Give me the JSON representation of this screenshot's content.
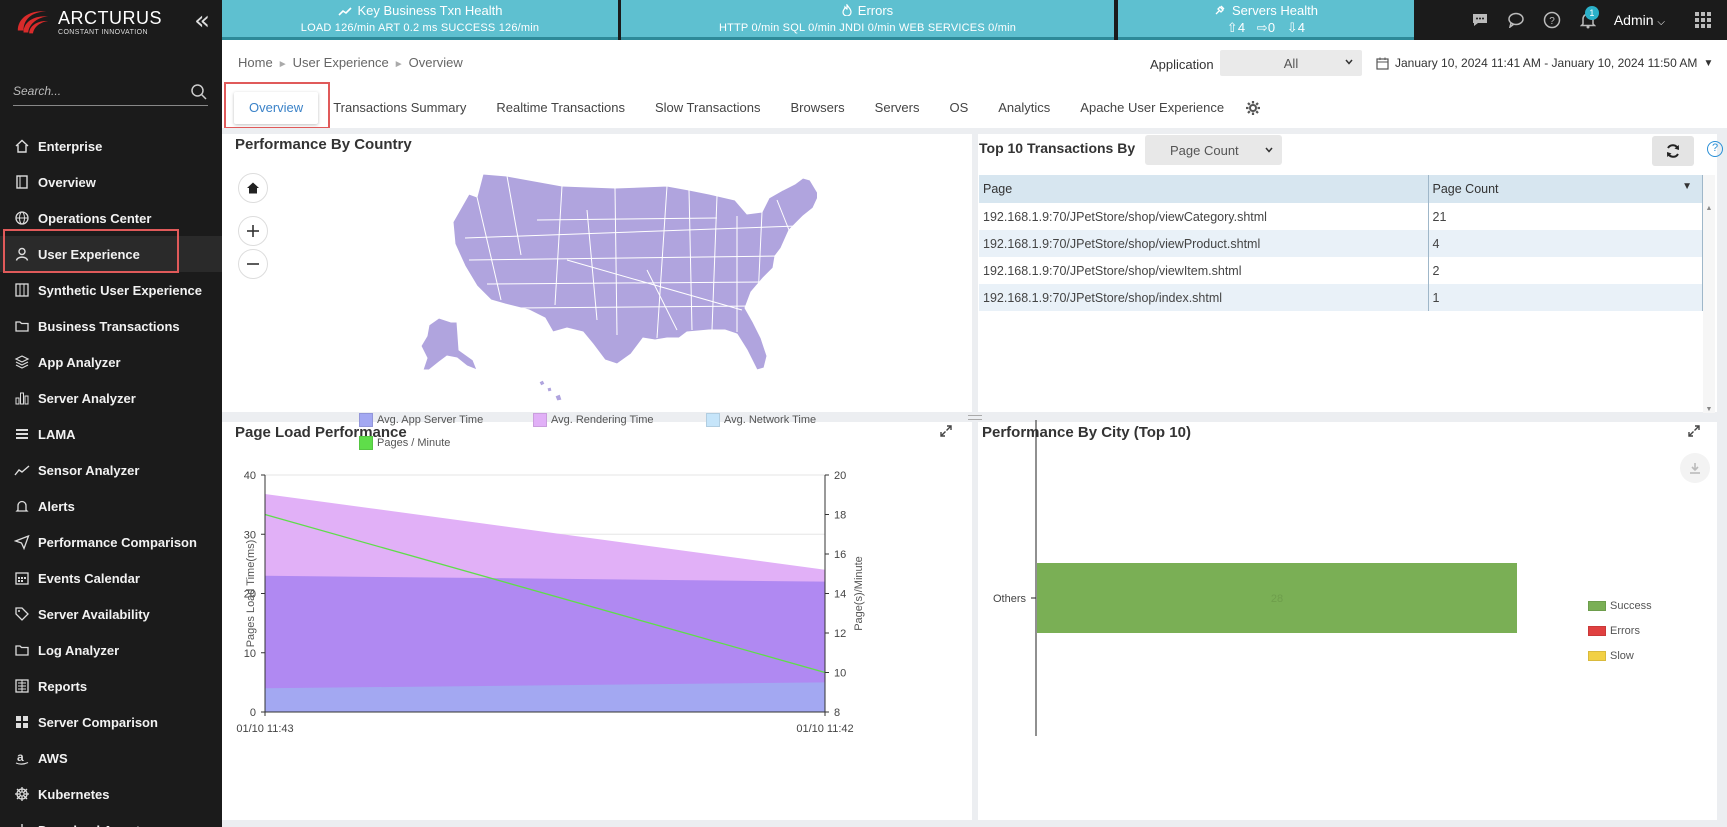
{
  "brand": {
    "name": "ARCTURUS",
    "tagline": "CONSTANT INNOVATION"
  },
  "search": {
    "placeholder": "Search..."
  },
  "nav": [
    {
      "label": "Enterprise",
      "icon": "home-icon"
    },
    {
      "label": "Overview",
      "icon": "book-icon"
    },
    {
      "label": "Operations Center",
      "icon": "globe-icon"
    },
    {
      "label": "User Experience",
      "icon": "user-icon",
      "active": true
    },
    {
      "label": "Synthetic User Experience",
      "icon": "columns-icon"
    },
    {
      "label": "Business Transactions",
      "icon": "folder-icon"
    },
    {
      "label": "App Analyzer",
      "icon": "layers-icon"
    },
    {
      "label": "Server Analyzer",
      "icon": "bar-chart-icon"
    },
    {
      "label": "LAMA",
      "icon": "list-icon"
    },
    {
      "label": "Sensor Analyzer",
      "icon": "trend-icon"
    },
    {
      "label": "Alerts",
      "icon": "bell-icon"
    },
    {
      "label": "Performance Comparison",
      "icon": "send-icon"
    },
    {
      "label": "Events Calendar",
      "icon": "calendar-icon"
    },
    {
      "label": "Server Availability",
      "icon": "tag-icon"
    },
    {
      "label": "Log Analyzer",
      "icon": "folder-icon"
    },
    {
      "label": "Reports",
      "icon": "report-icon"
    },
    {
      "label": "Server Comparison",
      "icon": "grid-icon"
    },
    {
      "label": "AWS",
      "icon": "amazon-icon"
    },
    {
      "label": "Kubernetes",
      "icon": "helm-icon"
    },
    {
      "label": "Download Agents",
      "icon": "download-icon"
    }
  ],
  "header": {
    "kbt": {
      "title": "Key Business Txn Health",
      "values": "LOAD 126/min  ART 0.2 ms  SUCCESS 126/min"
    },
    "errors": {
      "title": "Errors",
      "values": "HTTP 0/min  SQL 0/min  JNDI 0/min  WEB SERVICES 0/min"
    },
    "servers": {
      "title": "Servers Health",
      "up": "4",
      "neutral": "0",
      "down": "4"
    },
    "notifications": "1",
    "user": "Admin"
  },
  "breadcrumb": [
    "Home",
    "User Experience",
    "Overview"
  ],
  "application": {
    "label": "Application",
    "value": "All"
  },
  "date_range": "January 10, 2024 11:41 AM - January 10, 2024 11:50 AM",
  "tabs": [
    "Overview",
    "Transactions Summary",
    "Realtime Transactions",
    "Slow Transactions",
    "Browsers",
    "Servers",
    "OS",
    "Analytics",
    "Apache User Experience"
  ],
  "map_panel": {
    "title": "Performance By Country"
  },
  "transactions": {
    "title": "Top 10 Transactions By",
    "select_value": "Page Count",
    "columns": [
      "Page",
      "Page Count"
    ],
    "rows": [
      [
        "192.168.1.9:70/JPetStore/shop/viewCategory.shtml",
        "21"
      ],
      [
        "192.168.1.9:70/JPetStore/shop/viewProduct.shtml",
        "4"
      ],
      [
        "192.168.1.9:70/JPetStore/shop/viewItem.shtml",
        "2"
      ],
      [
        "192.168.1.9:70/JPetStore/shop/index.shtml",
        "1"
      ]
    ]
  },
  "page_load": {
    "title": "Page Load Performance"
  },
  "city_perf": {
    "title": "Performance By City (Top 10)"
  },
  "chart_data": [
    {
      "type": "area",
      "title": "Page Load Performance",
      "ylabel": "Pages Load Time(ms)",
      "y2label": "Page(s)/Minute",
      "categories": [
        "01/10 11:43",
        "01/10 11:42"
      ],
      "ylim": [
        0,
        40
      ],
      "y2lim": [
        8,
        20
      ],
      "y_ticks": [
        "0",
        "10",
        "20",
        "30",
        "40"
      ],
      "y2_ticks": [
        "8",
        "10",
        "12",
        "14",
        "16",
        "18",
        "20"
      ],
      "series": [
        {
          "name": "Avg. App Server Time",
          "color": "#a3a8f2",
          "stacked_top": [
            4,
            5
          ]
        },
        {
          "name": "Avg. Rendering Time",
          "color": "#e1b0f7",
          "stacked_top": [
            36.8,
            24
          ]
        },
        {
          "name": "Avg. Network Time",
          "color": "#c6e5fa",
          "stacked_top": [
            36.8,
            24
          ]
        },
        {
          "name": "Pages / Minute",
          "color": "#5fdd4a",
          "axis": "right",
          "values": [
            18,
            10
          ]
        }
      ],
      "overlap_band_top": [
        23,
        22
      ],
      "overlap_color": "#b089f2",
      "legend": "top",
      "grid": true
    },
    {
      "type": "bar",
      "orientation": "horizontal",
      "stacked": true,
      "title": "Performance By City (Top 10)",
      "categories": [
        "Others"
      ],
      "series": [
        {
          "name": "Success",
          "color": "#7aaf55",
          "values": [
            28
          ]
        },
        {
          "name": "Errors",
          "color": "#e04040",
          "values": [
            0
          ]
        },
        {
          "name": "Slow",
          "color": "#f2d044",
          "values": [
            0
          ]
        }
      ],
      "data_labels": [
        "28"
      ],
      "legend": "right"
    }
  ],
  "colors": {
    "accent": "#3a82c8",
    "header_teal": "#5ec0d0",
    "sidebar": "#1b1b1b",
    "highlight": "#e05a5a",
    "map_fill": "#b0a4de"
  }
}
